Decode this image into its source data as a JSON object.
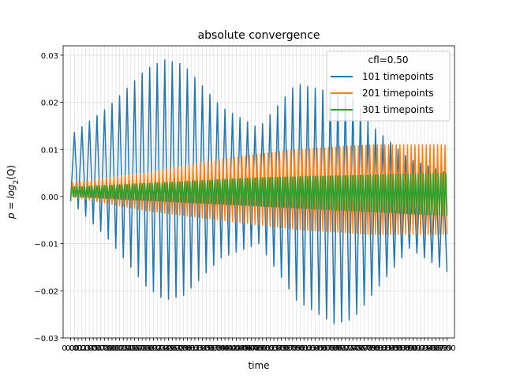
{
  "chart_data": {
    "type": "line",
    "title": "absolute convergence",
    "xlabel": "time",
    "ylabel_prefix": "p = log",
    "ylabel_sub": "2",
    "ylabel_suffix": "(Q)",
    "xlim": [
      -0.02,
      1.02
    ],
    "ylim": [
      -0.03,
      0.032
    ],
    "y_ticks": [
      -0.03,
      -0.02,
      -0.01,
      0.0,
      0.01,
      0.02,
      0.03
    ],
    "y_tick_labels": [
      "−0.03",
      "−0.02",
      "−0.01",
      "0.00",
      "0.01",
      "0.02",
      "0.03"
    ],
    "x_tick_count": 101,
    "x_tick_labels_visible": [
      "0.00",
      "1.00"
    ],
    "grid": true,
    "legend": {
      "title": "cfl=0.50",
      "placement": "top-right",
      "entries": [
        "101 timepoints",
        "201 timepoints",
        "301 timepoints"
      ]
    },
    "series": [
      {
        "name": "101 timepoints",
        "color": "#1f77b4",
        "points": 101,
        "envelope_x": [
          0.0,
          0.1,
          0.2,
          0.25,
          0.3,
          0.4,
          0.5,
          0.6,
          0.7,
          0.75,
          0.8,
          0.9,
          1.0
        ],
        "envelope_upper": [
          0.013,
          0.019,
          0.027,
          0.029,
          0.028,
          0.019,
          0.0145,
          0.024,
          0.022,
          0.021,
          0.015,
          0.008,
          0.005
        ],
        "envelope_lower": [
          -0.001,
          -0.009,
          -0.019,
          -0.022,
          -0.021,
          -0.013,
          -0.01,
          -0.022,
          -0.027,
          -0.026,
          -0.021,
          -0.011,
          -0.016
        ]
      },
      {
        "name": "201 timepoints",
        "color": "#ff7f0e",
        "points": 201,
        "envelope_x": [
          0.0,
          0.2,
          0.4,
          0.6,
          0.8,
          1.0
        ],
        "envelope_upper": [
          0.003,
          0.005,
          0.008,
          0.01,
          0.011,
          0.011
        ],
        "envelope_lower": [
          0.0,
          -0.003,
          -0.005,
          -0.007,
          -0.008,
          -0.008
        ]
      },
      {
        "name": "301 timepoints",
        "color": "#2ca02c",
        "points": 301,
        "envelope_x": [
          0.0,
          0.5,
          1.0
        ],
        "envelope_upper": [
          0.002,
          0.004,
          0.005
        ],
        "envelope_lower": [
          0.0,
          -0.002,
          -0.004
        ]
      }
    ]
  }
}
